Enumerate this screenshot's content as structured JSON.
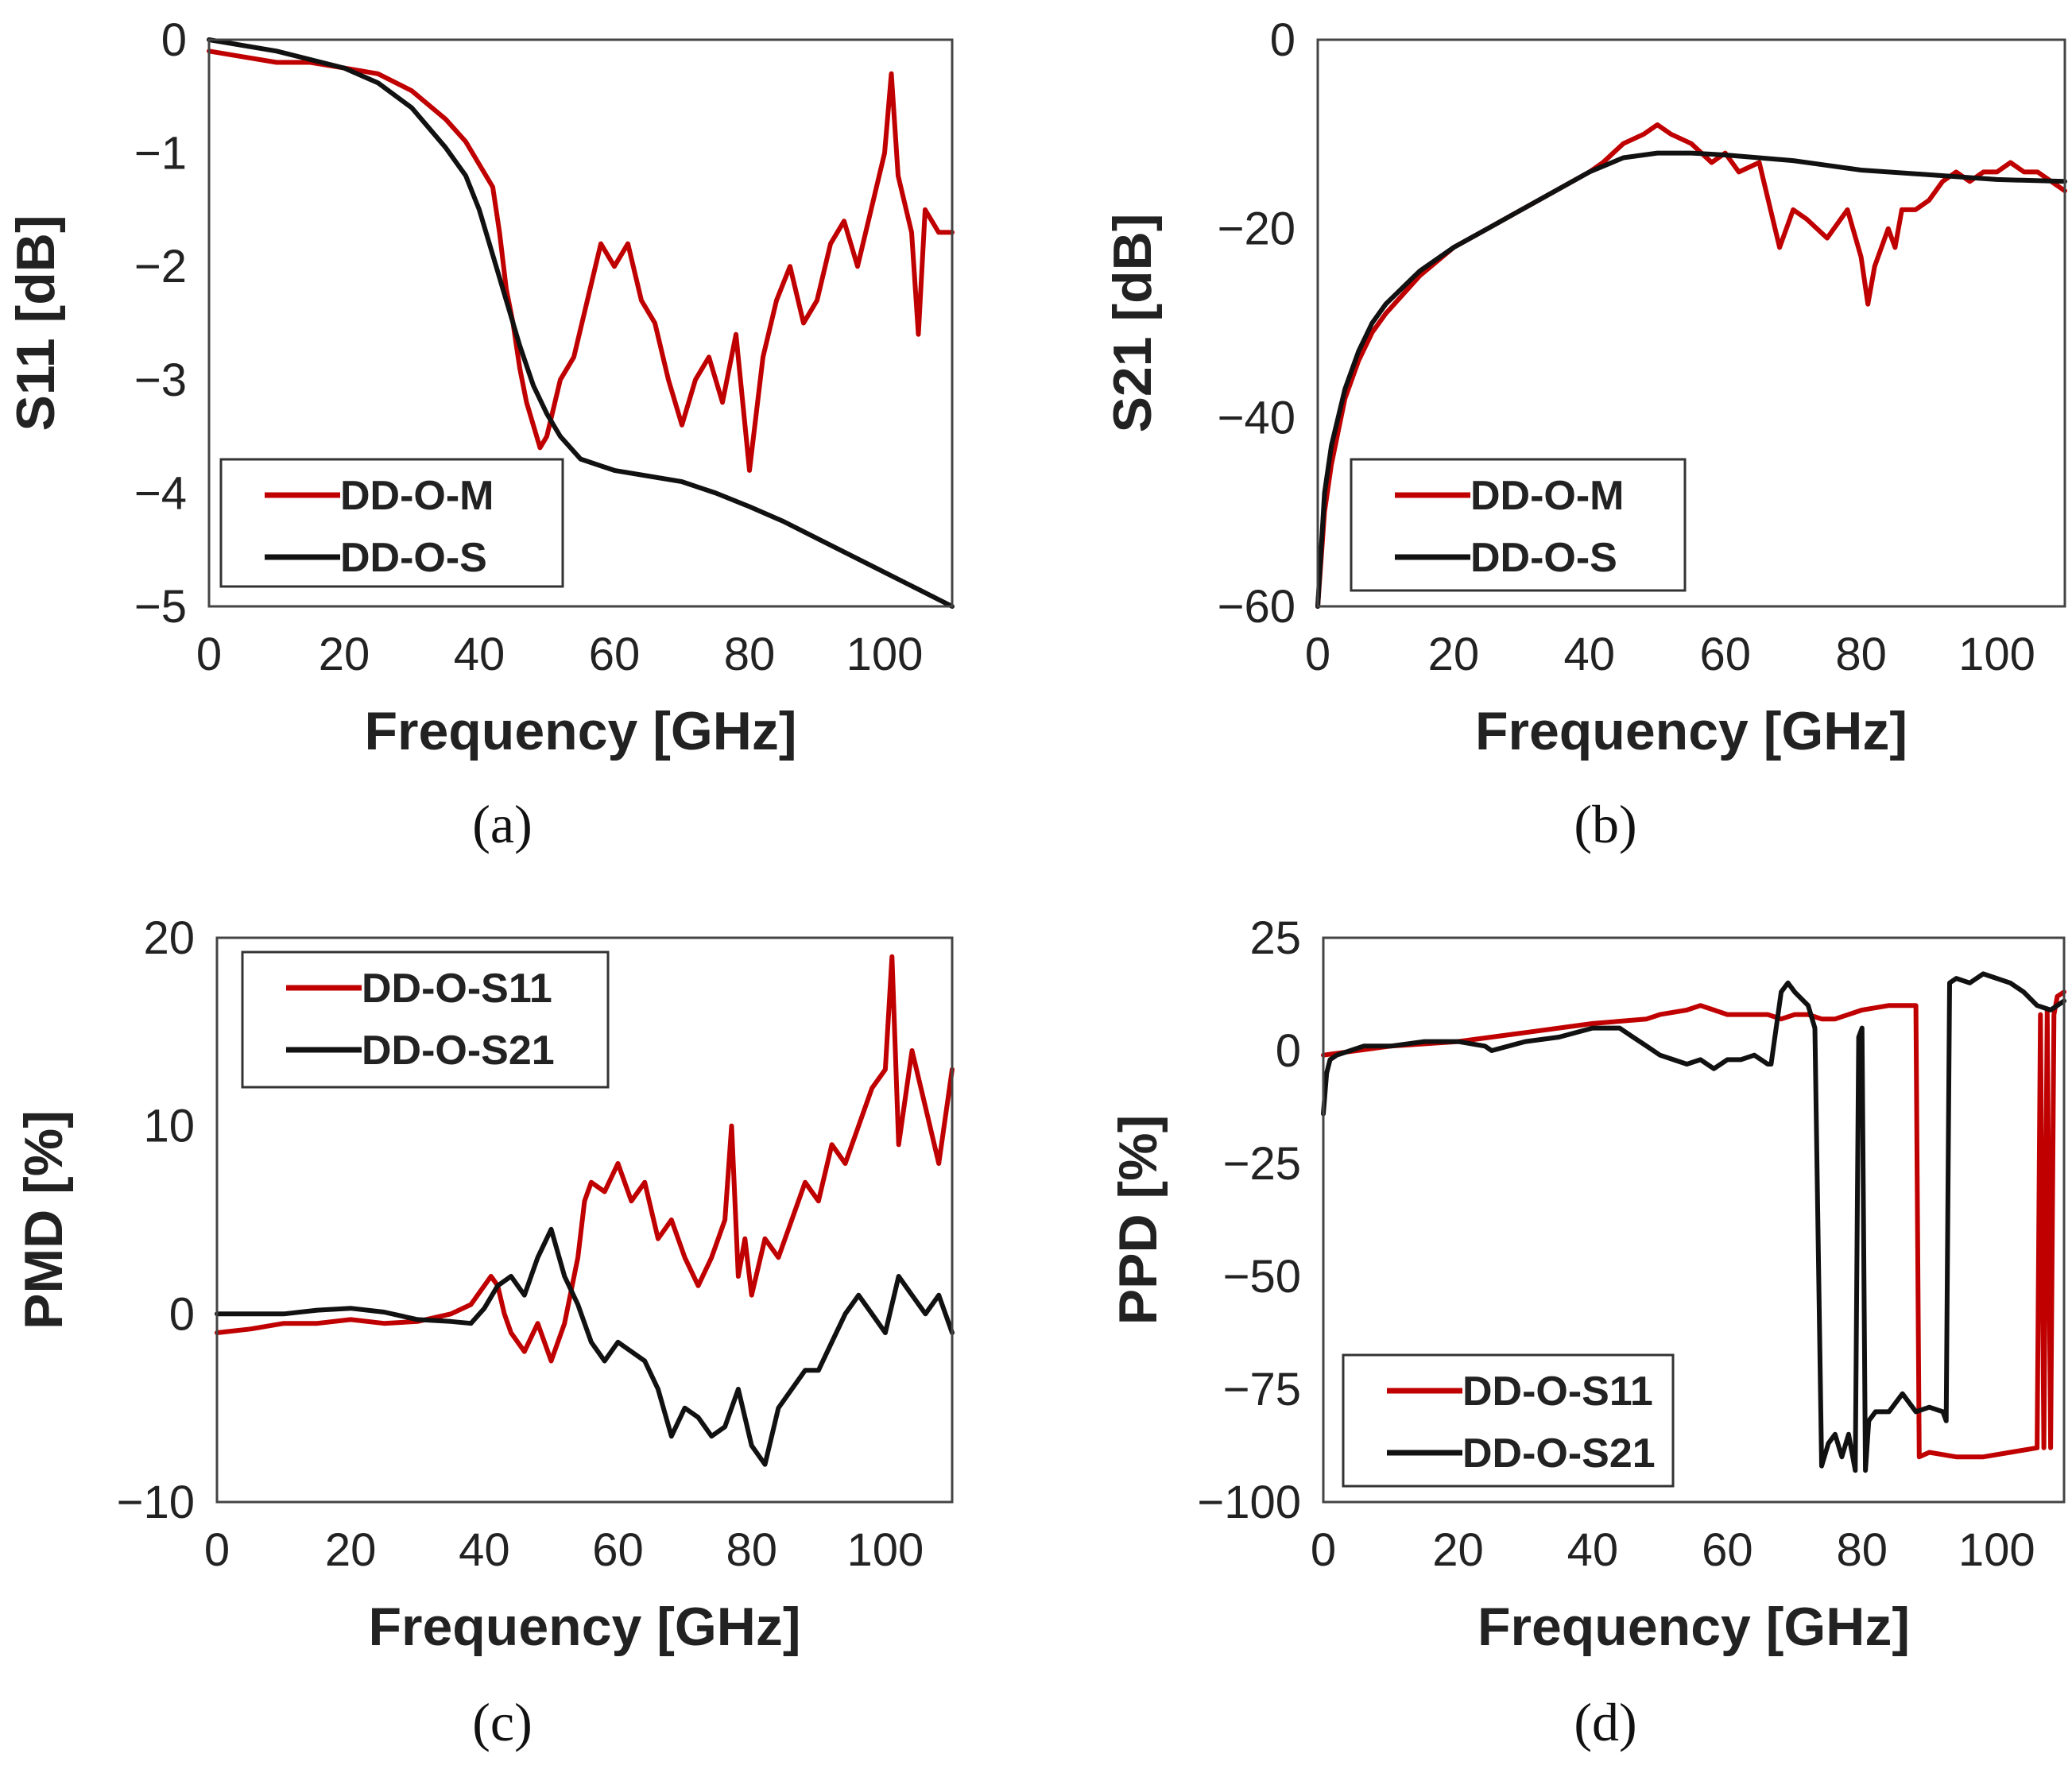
{
  "colors": {
    "measured": "#c00000",
    "simulated": "#111111"
  },
  "chart_data": [
    {
      "id": "a",
      "type": "line",
      "caption": "(a)",
      "xlabel": "Frequency [GHz]",
      "ylabel": "S11 [dB]",
      "xlim": [
        0,
        110
      ],
      "ylim": [
        -5,
        0
      ],
      "xticks": [
        0,
        20,
        40,
        60,
        80,
        100
      ],
      "yticks": [
        0,
        -1,
        -2,
        -3,
        -4,
        -5
      ],
      "yticklabels": [
        "0",
        "−1",
        "−2",
        "−3",
        "−4",
        "−5"
      ],
      "legend_position": "lower-left",
      "series": [
        {
          "name": "DD-O-M",
          "color": "#c00000",
          "x": [
            0,
            5,
            10,
            15,
            20,
            25,
            30,
            35,
            38,
            40,
            42,
            43,
            44,
            45,
            46,
            47,
            48,
            49,
            50,
            52,
            54,
            56,
            58,
            60,
            62,
            64,
            66,
            68,
            70,
            72,
            74,
            76,
            78,
            80,
            82,
            84,
            86,
            88,
            90,
            92,
            94,
            96,
            98,
            100,
            101,
            102,
            104,
            105,
            106,
            108,
            110
          ],
          "y": [
            -0.1,
            -0.15,
            -0.2,
            -0.2,
            -0.25,
            -0.3,
            -0.45,
            -0.7,
            -0.9,
            -1.1,
            -1.3,
            -1.7,
            -2.2,
            -2.5,
            -2.9,
            -3.2,
            -3.4,
            -3.6,
            -3.5,
            -3.0,
            -2.8,
            -2.3,
            -1.8,
            -2.0,
            -1.8,
            -2.3,
            -2.5,
            -3.0,
            -3.4,
            -3.0,
            -2.8,
            -3.2,
            -2.6,
            -3.8,
            -2.8,
            -2.3,
            -2.0,
            -2.5,
            -2.3,
            -1.8,
            -1.6,
            -2.0,
            -1.5,
            -1.0,
            -0.3,
            -1.2,
            -1.7,
            -2.6,
            -1.5,
            -1.7,
            -1.7
          ]
        },
        {
          "name": "DD-O-S",
          "color": "#111111",
          "x": [
            0,
            10,
            20,
            25,
            30,
            35,
            38,
            40,
            42,
            44,
            46,
            48,
            50,
            52,
            55,
            60,
            65,
            70,
            75,
            80,
            85,
            90,
            95,
            100,
            105,
            110
          ],
          "y": [
            0,
            -0.1,
            -0.25,
            -0.38,
            -0.6,
            -0.95,
            -1.2,
            -1.5,
            -1.9,
            -2.3,
            -2.7,
            -3.05,
            -3.3,
            -3.5,
            -3.7,
            -3.8,
            -3.85,
            -3.9,
            -4.0,
            -4.12,
            -4.25,
            -4.4,
            -4.55,
            -4.7,
            -4.85,
            -5.0
          ]
        }
      ]
    },
    {
      "id": "b",
      "type": "line",
      "caption": "(b)",
      "xlabel": "Frequency [GHz]",
      "ylabel": "S21 [dB]",
      "xlim": [
        0,
        110
      ],
      "ylim": [
        -60,
        0
      ],
      "xticks": [
        0,
        20,
        40,
        60,
        80,
        100
      ],
      "yticks": [
        0,
        -20,
        -40,
        -60
      ],
      "yticklabels": [
        "0",
        "−20",
        "−40",
        "−60"
      ],
      "legend_position": "lower-left",
      "series": [
        {
          "name": "DD-O-M",
          "color": "#c00000",
          "x": [
            0,
            1,
            2,
            4,
            6,
            8,
            10,
            15,
            20,
            25,
            30,
            35,
            40,
            42,
            45,
            48,
            50,
            52,
            55,
            58,
            60,
            62,
            65,
            66,
            68,
            70,
            72,
            75,
            78,
            80,
            81,
            82,
            84,
            85,
            86,
            88,
            90,
            92,
            94,
            96,
            98,
            100,
            102,
            104,
            106,
            108,
            110
          ],
          "y": [
            -60,
            -50,
            -45,
            -38,
            -34,
            -31,
            -29,
            -25,
            -22,
            -20,
            -18,
            -16,
            -14,
            -13,
            -11,
            -10,
            -9,
            -10,
            -11,
            -13,
            -12,
            -14,
            -13,
            -16,
            -22,
            -18,
            -19,
            -21,
            -18,
            -23,
            -28,
            -24,
            -20,
            -22,
            -18,
            -18,
            -17,
            -15,
            -14,
            -15,
            -14,
            -14,
            -13,
            -14,
            -14,
            -15,
            -16
          ]
        },
        {
          "name": "DD-O-S",
          "color": "#111111",
          "x": [
            0,
            1,
            2,
            4,
            6,
            8,
            10,
            15,
            20,
            25,
            30,
            35,
            40,
            45,
            50,
            55,
            60,
            70,
            80,
            90,
            100,
            110
          ],
          "y": [
            -60,
            -48,
            -43,
            -37,
            -33,
            -30,
            -28,
            -24.5,
            -22,
            -20,
            -18,
            -16,
            -14,
            -12.5,
            -12,
            -12,
            -12.2,
            -12.8,
            -13.8,
            -14.3,
            -14.8,
            -15
          ]
        }
      ]
    },
    {
      "id": "c",
      "type": "line",
      "caption": "(c)",
      "xlabel": "Frequency [GHz]",
      "ylabel": "PMD [%]",
      "xlim": [
        0,
        110
      ],
      "ylim": [
        -10,
        20
      ],
      "xticks": [
        0,
        20,
        40,
        60,
        80,
        100
      ],
      "yticks": [
        20,
        10,
        0,
        -10
      ],
      "yticklabels": [
        "20",
        "10",
        "0",
        "−10"
      ],
      "legend_position": "top-left",
      "series": [
        {
          "name": "DD-O-S11",
          "color": "#c00000",
          "x": [
            0,
            5,
            10,
            15,
            20,
            25,
            30,
            35,
            38,
            40,
            41,
            42,
            43,
            44,
            46,
            48,
            50,
            52,
            54,
            55,
            56,
            58,
            60,
            62,
            64,
            66,
            68,
            70,
            72,
            74,
            76,
            77,
            78,
            79,
            80,
            82,
            84,
            86,
            88,
            90,
            92,
            94,
            96,
            98,
            100,
            101,
            102,
            104,
            106,
            108,
            110
          ],
          "y": [
            -1,
            -0.8,
            -0.5,
            -0.5,
            -0.3,
            -0.5,
            -0.4,
            0,
            0.5,
            1.5,
            2,
            1.5,
            0,
            -1,
            -2,
            -0.5,
            -2.5,
            -0.5,
            3,
            6,
            7,
            6.5,
            8,
            6,
            7,
            4,
            5,
            3,
            1.5,
            3,
            5,
            10,
            2,
            4,
            1,
            4,
            3,
            5,
            7,
            6,
            9,
            8,
            10,
            12,
            13,
            19,
            9,
            14,
            11,
            8,
            13
          ]
        },
        {
          "name": "DD-O-S21",
          "color": "#111111",
          "x": [
            0,
            5,
            10,
            15,
            20,
            25,
            30,
            35,
            38,
            40,
            42,
            44,
            46,
            48,
            50,
            52,
            54,
            56,
            58,
            60,
            62,
            64,
            66,
            68,
            70,
            72,
            74,
            76,
            78,
            80,
            82,
            84,
            86,
            88,
            90,
            92,
            94,
            96,
            98,
            100,
            102,
            104,
            106,
            108,
            110
          ],
          "y": [
            0,
            0,
            0,
            0.2,
            0.3,
            0.1,
            -0.3,
            -0.4,
            -0.5,
            0.3,
            1.5,
            2,
            1,
            3,
            4.5,
            2,
            0.5,
            -1.5,
            -2.5,
            -1.5,
            -2,
            -2.5,
            -4,
            -6.5,
            -5,
            -5.5,
            -6.5,
            -6,
            -4,
            -7,
            -8,
            -5,
            -4,
            -3,
            -3,
            -1.5,
            0,
            1,
            0,
            -1,
            2,
            1,
            0,
            1,
            -1
          ]
        }
      ]
    },
    {
      "id": "d",
      "type": "line",
      "caption": "(d)",
      "xlabel": "Frequency [GHz]",
      "ylabel": "PPD [%]",
      "xlim": [
        0,
        110
      ],
      "ylim": [
        -100,
        25
      ],
      "xticks": [
        0,
        20,
        40,
        60,
        80,
        100
      ],
      "yticks": [
        25,
        0,
        -25,
        -50,
        -75,
        -100
      ],
      "yticklabels": [
        "25",
        "0",
        "−25",
        "−50",
        "−75",
        "−100"
      ],
      "legend_position": "lower-left",
      "series": [
        {
          "name": "DD-O-S11",
          "color": "#c00000",
          "x": [
            0,
            10,
            20,
            30,
            40,
            48,
            50,
            54,
            56,
            60,
            64,
            66,
            68,
            70,
            72,
            74,
            76,
            80,
            84,
            88,
            88.5,
            90,
            94,
            98,
            102,
            106,
            106.5,
            107,
            107.5,
            108,
            108.5,
            109,
            110
          ],
          "y": [
            -1,
            1,
            2,
            4,
            6,
            7,
            8,
            9,
            10,
            8,
            8,
            8,
            7,
            8,
            8,
            7,
            7,
            9,
            10,
            10,
            -90,
            -89,
            -90,
            -90,
            -89,
            -88,
            8,
            -88,
            9,
            -88,
            8,
            12,
            13
          ]
        },
        {
          "name": "DD-O-S21",
          "color": "#111111",
          "x": [
            0,
            0.5,
            1,
            2,
            4,
            6,
            10,
            15,
            20,
            24,
            25,
            30,
            35,
            40,
            44,
            46,
            48,
            50,
            52,
            54,
            56,
            58,
            60,
            62,
            64,
            66,
            66.5,
            68,
            69,
            70,
            72,
            73,
            74,
            75,
            76,
            77,
            78,
            79,
            79.5,
            80,
            80.5,
            81,
            82,
            84,
            86,
            88,
            90,
            92,
            92.5,
            93,
            94,
            96,
            98,
            100,
            102,
            104,
            106,
            108,
            110
          ],
          "y": [
            -14,
            -5,
            -2,
            -1,
            0,
            1,
            1,
            2,
            2,
            1,
            0,
            2,
            3,
            5,
            5,
            3,
            1,
            -1,
            -2,
            -3,
            -2,
            -4,
            -2,
            -2,
            -1,
            -3,
            -3,
            13,
            15,
            13,
            10,
            5,
            -92,
            -87,
            -85,
            -90,
            -85,
            -93,
            3,
            5,
            -93,
            -82,
            -80,
            -80,
            -76,
            -80,
            -79,
            -80,
            -82,
            15,
            16,
            15,
            17,
            16,
            15,
            13,
            10,
            9,
            11
          ]
        }
      ]
    }
  ]
}
